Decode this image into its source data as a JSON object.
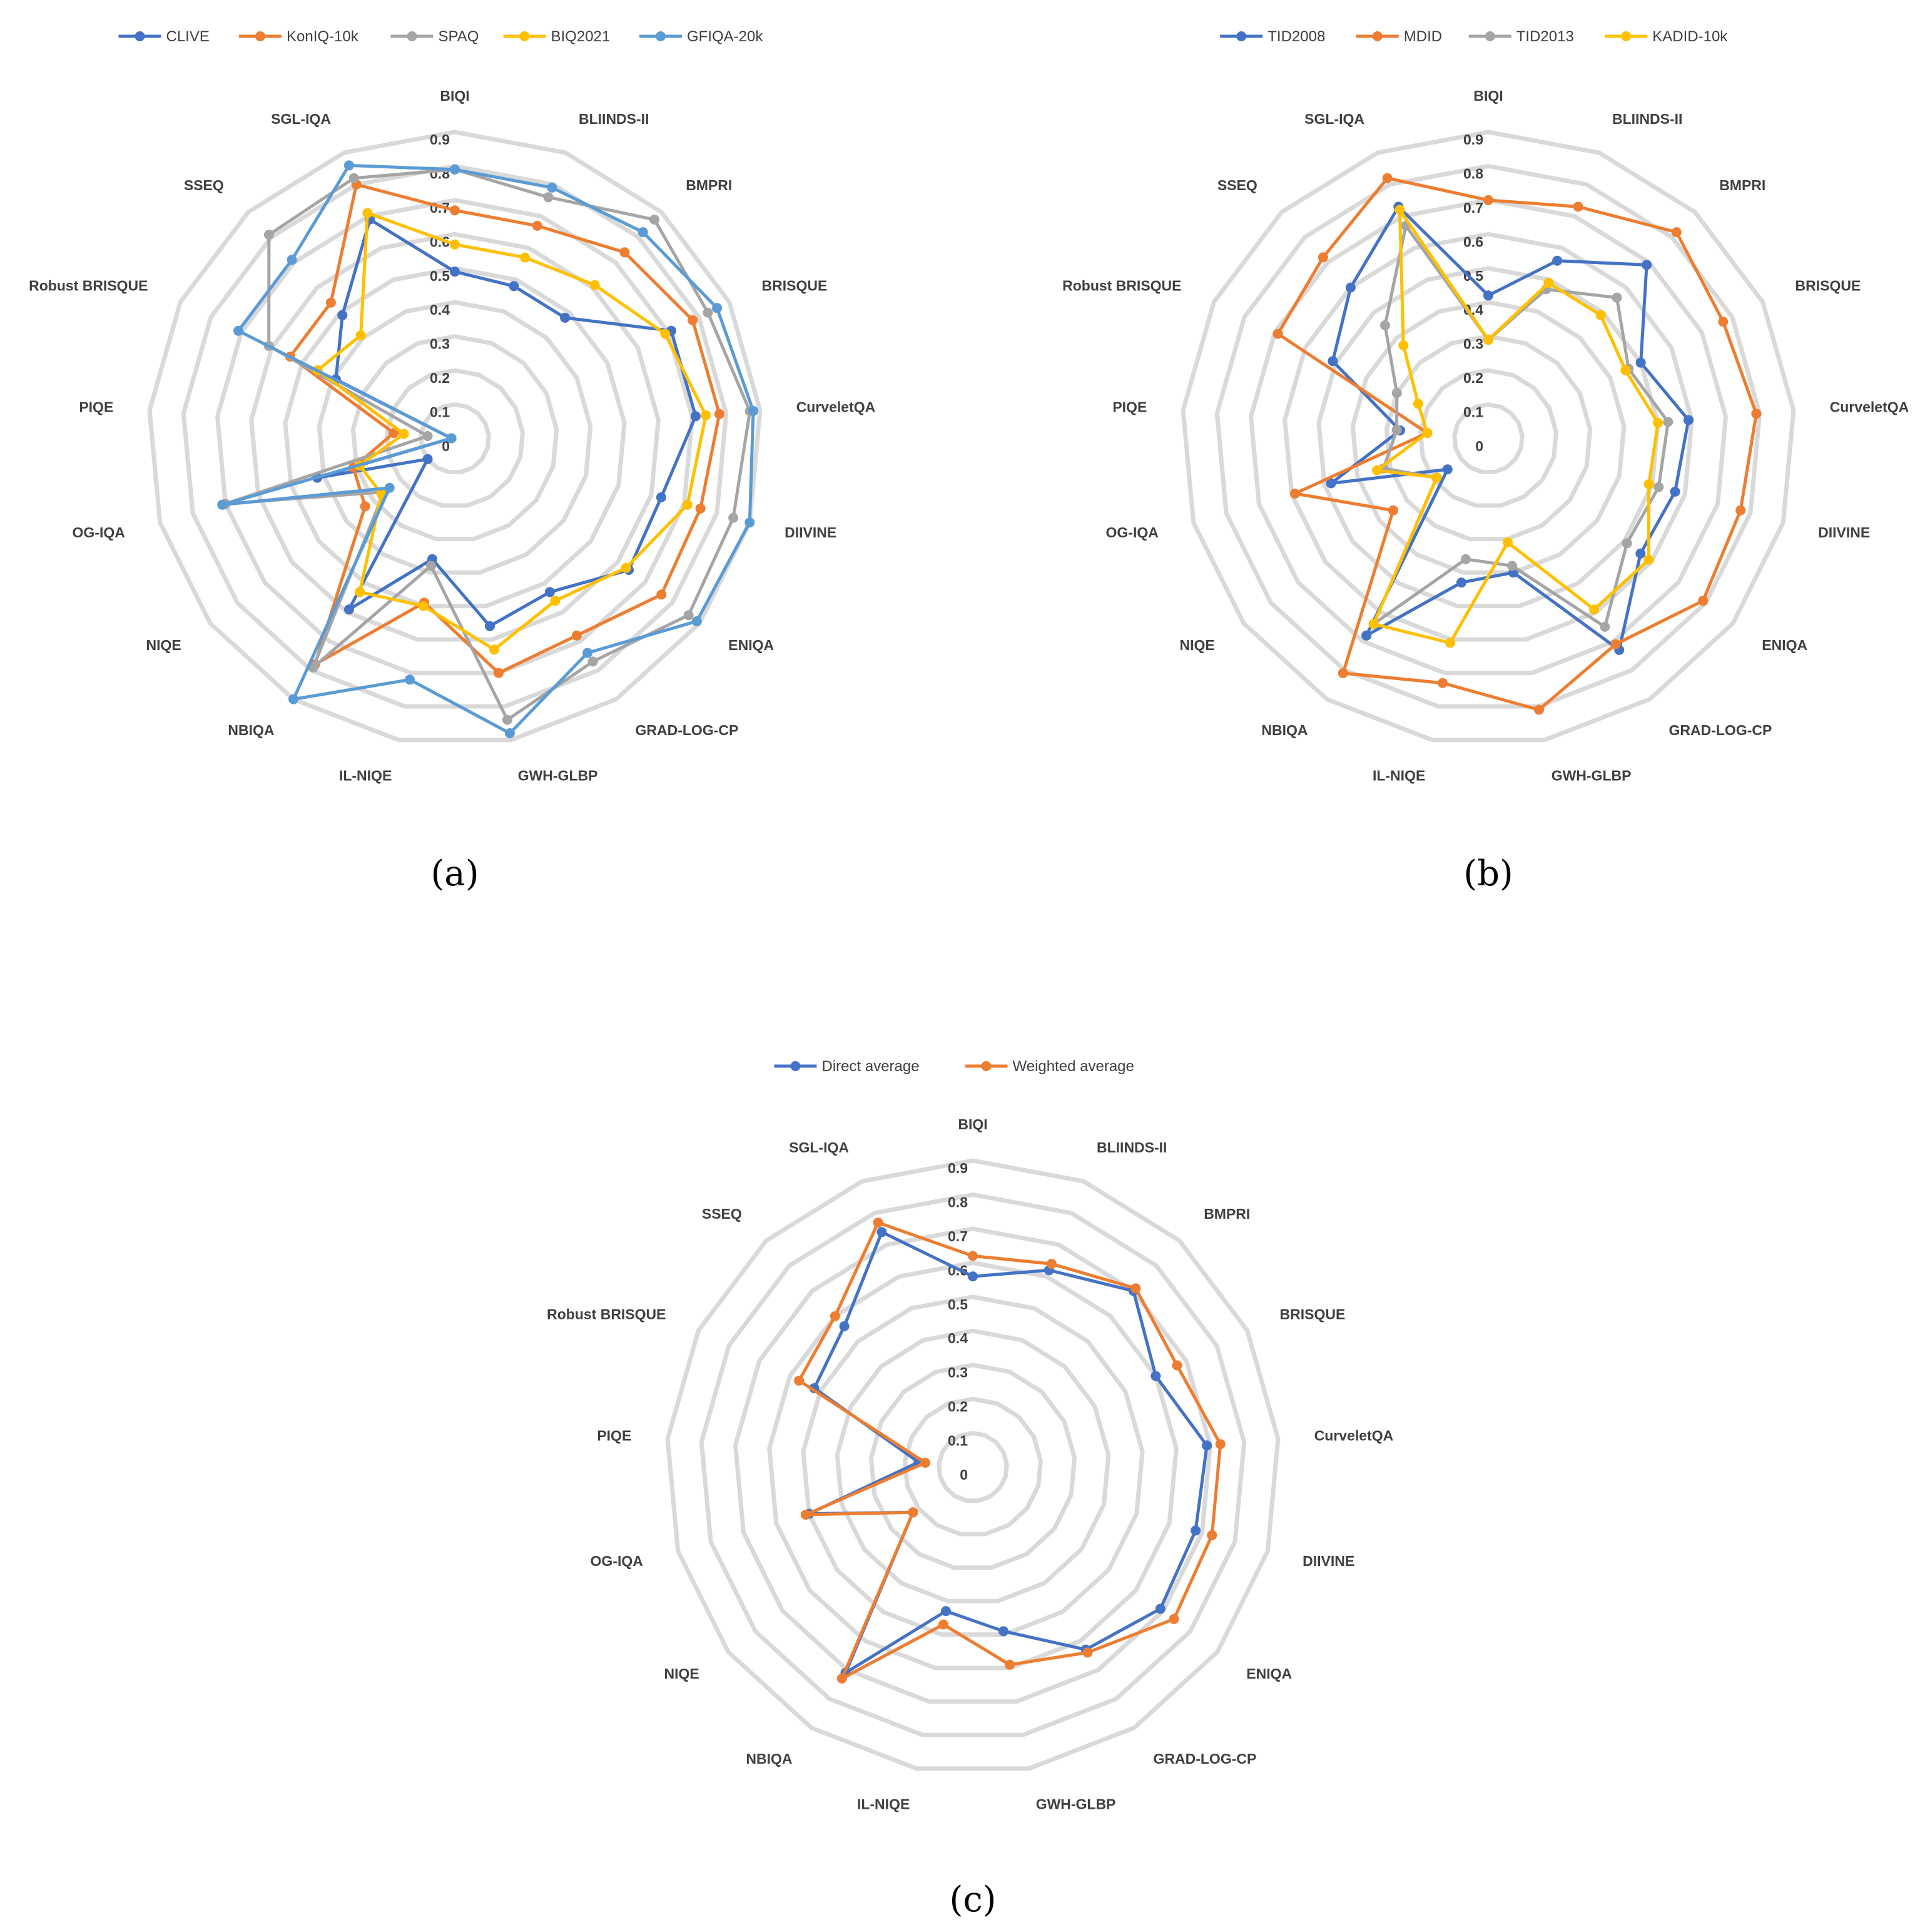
{
  "chart_data": [
    {
      "type": "radar",
      "panel_label": "(a)",
      "categories": [
        "BIQI",
        "BLIINDS-II",
        "BMPRI",
        "BRISQUE",
        "CurveletQA",
        "DIIVINE",
        "ENIQA",
        "GRAD-LOG-CP",
        "GWH-GLBP",
        "IL-NIQE",
        "NBIQA",
        "NIQE",
        "OG-IQA",
        "PIQE",
        "Robust BRISQUE",
        "SSEQ",
        "SGL-IQA"
      ],
      "ticks": [
        "0",
        "0.1",
        "0.2",
        "0.3",
        "0.4",
        "0.5",
        "0.6",
        "0.7",
        "0.8",
        "0.9"
      ],
      "rmax": 0.9,
      "grid": true,
      "legend_position": "top",
      "series": [
        {
          "name": "CLIVE",
          "color": "#4472C4",
          "values": [
            0.49,
            0.48,
            0.48,
            0.71,
            0.71,
            0.63,
            0.64,
            0.53,
            0.56,
            0.36,
            0.59,
            0.1,
            0.42,
            0.01,
            0.39,
            0.49,
            0.69
          ]
        },
        {
          "name": "KonIQ-10k",
          "color": "#ED7D31",
          "values": [
            0.67,
            0.67,
            0.74,
            0.78,
            0.78,
            0.75,
            0.76,
            0.68,
            0.7,
            0.49,
            0.78,
            0.33,
            0.31,
            0.18,
            0.54,
            0.54,
            0.8
          ]
        },
        {
          "name": "SPAQ",
          "color": "#A5A5A5",
          "values": [
            0.79,
            0.76,
            0.87,
            0.83,
            0.87,
            0.85,
            0.86,
            0.77,
            0.84,
            0.38,
            0.79,
            0.26,
            0.7,
            0.08,
            0.61,
            0.81,
            0.82
          ]
        },
        {
          "name": "BIQ2021",
          "color": "#FFC000",
          "values": [
            0.57,
            0.57,
            0.61,
            0.69,
            0.74,
            0.71,
            0.63,
            0.56,
            0.63,
            0.5,
            0.53,
            0.27,
            0.29,
            0.15,
            0.45,
            0.41,
            0.71
          ]
        },
        {
          "name": "GFIQA-20k",
          "color": "#5B9BD5",
          "values": [
            0.79,
            0.79,
            0.82,
            0.86,
            0.88,
            0.9,
            0.89,
            0.74,
            0.88,
            0.72,
            0.9,
            0.24,
            0.71,
            0.01,
            0.71,
            0.71,
            0.86
          ]
        }
      ]
    },
    {
      "type": "radar",
      "panel_label": "(b)",
      "categories": [
        "BIQI",
        "BLIINDS-II",
        "BMPRI",
        "BRISQUE",
        "CurveletQA",
        "DIIVINE",
        "ENIQA",
        "GRAD-LOG-CP",
        "GWH-GLBP",
        "IL-NIQE",
        "NBIQA",
        "NIQE",
        "OG-IQA",
        "PIQE",
        "Robust BRISQUE",
        "SSEQ",
        "SGL-IQA"
      ],
      "ticks": [
        "0",
        "0.1",
        "0.2",
        "0.3",
        "0.4",
        "0.5",
        "0.6",
        "0.7",
        "0.8",
        "0.9"
      ],
      "rmax": 0.9,
      "grid": true,
      "legend_position": "top",
      "series": [
        {
          "name": "TID2008",
          "color": "#4472C4",
          "values": [
            0.42,
            0.56,
            0.69,
            0.5,
            0.59,
            0.57,
            0.56,
            0.73,
            0.4,
            0.43,
            0.68,
            0.15,
            0.48,
            0.26,
            0.51,
            0.6,
            0.73
          ]
        },
        {
          "name": "MDID",
          "color": "#ED7D31",
          "values": [
            0.7,
            0.73,
            0.82,
            0.77,
            0.79,
            0.77,
            0.79,
            0.71,
            0.81,
            0.73,
            0.81,
            0.35,
            0.59,
            0.18,
            0.69,
            0.72,
            0.82
          ]
        },
        {
          "name": "TID2013",
          "color": "#A5A5A5",
          "values": [
            0.29,
            0.47,
            0.56,
            0.46,
            0.53,
            0.52,
            0.51,
            0.65,
            0.38,
            0.36,
            0.64,
            0.19,
            0.32,
            0.27,
            0.3,
            0.45,
            0.67
          ]
        },
        {
          "name": "KADID-10k",
          "color": "#FFC000",
          "values": [
            0.29,
            0.49,
            0.49,
            0.45,
            0.5,
            0.49,
            0.59,
            0.59,
            0.31,
            0.61,
            0.64,
            0.19,
            0.34,
            0.18,
            0.23,
            0.37,
            0.72
          ]
        }
      ]
    },
    {
      "type": "radar",
      "panel_label": "(c)",
      "categories": [
        "BIQI",
        "BLIINDS-II",
        "BMPRI",
        "BRISQUE",
        "CurveletQA",
        "DIIVINE",
        "ENIQA",
        "GRAD-LOG-CP",
        "GWH-GLBP",
        "IL-NIQE",
        "NBIQA",
        "NIQE",
        "OG-IQA",
        "PIQE",
        "Robust BRISQUE",
        "SSEQ",
        "SGL-IQA"
      ],
      "ticks": [
        "0",
        "0.1",
        "0.2",
        "0.3",
        "0.4",
        "0.5",
        "0.6",
        "0.7",
        "0.8",
        "0.9"
      ],
      "rmax": 0.9,
      "grid": true,
      "legend_position": "top",
      "series": [
        {
          "name": "Direct average",
          "color": "#4472C4",
          "values": [
            0.56,
            0.62,
            0.7,
            0.6,
            0.69,
            0.68,
            0.69,
            0.63,
            0.49,
            0.43,
            0.71,
            0.22,
            0.5,
            0.16,
            0.52,
            0.56,
            0.74
          ]
        },
        {
          "name": "Weighted average",
          "color": "#ED7D31",
          "values": [
            0.62,
            0.64,
            0.71,
            0.67,
            0.73,
            0.73,
            0.74,
            0.64,
            0.59,
            0.47,
            0.73,
            0.22,
            0.51,
            0.14,
            0.57,
            0.6,
            0.77
          ]
        }
      ]
    }
  ]
}
